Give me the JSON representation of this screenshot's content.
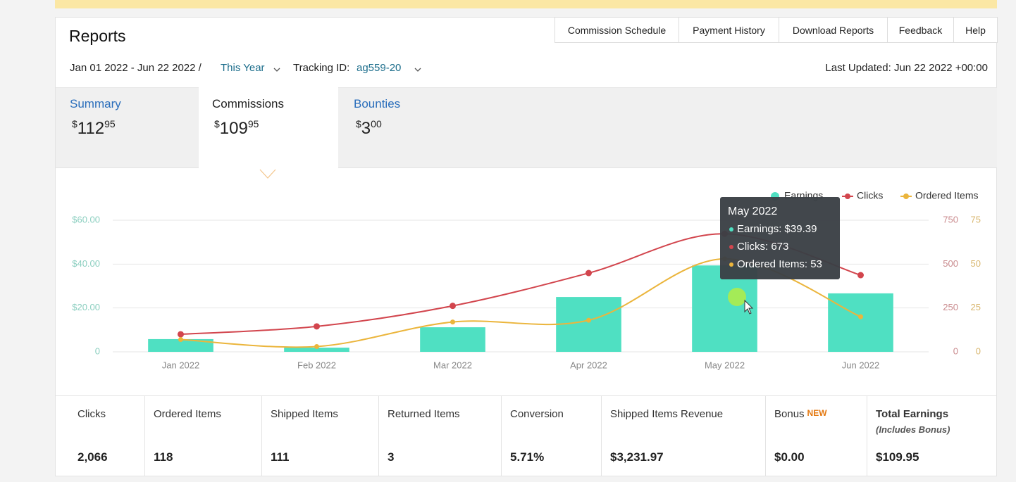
{
  "header": {
    "title": "Reports",
    "nav": [
      "Commission Schedule",
      "Payment History",
      "Download Reports",
      "Feedback",
      "Help"
    ]
  },
  "filters": {
    "date_range": "Jan 01 2022 - Jun 22 2022 /",
    "period": "This Year",
    "tracking_label": "Tracking ID:",
    "tracking_id": "ag559-20",
    "last_updated": "Last Updated: Jun 22 2022 +00:00"
  },
  "tabs": [
    {
      "label": "Summary",
      "currency": "$",
      "whole": "112",
      "cents": "95"
    },
    {
      "label": "Commissions",
      "currency": "$",
      "whole": "109",
      "cents": "95"
    },
    {
      "label": "Bounties",
      "currency": "$",
      "whole": "3",
      "cents": "00"
    }
  ],
  "chart_data": {
    "type": "combo",
    "categories": [
      "Jan 2022",
      "Feb 2022",
      "Mar 2022",
      "Apr 2022",
      "May 2022",
      "Jun 2022"
    ],
    "series": [
      {
        "name": "Earnings",
        "type": "bar",
        "axis": "y",
        "color": "#4fe0c2",
        "values": [
          5.8,
          1.9,
          11.2,
          25.0,
          39.39,
          26.66
        ]
      },
      {
        "name": "Clicks",
        "type": "line",
        "axis": "y2",
        "color": "#d2454d",
        "values": [
          100,
          145,
          262,
          449,
          673,
          437
        ]
      },
      {
        "name": "Ordered Items",
        "type": "line",
        "axis": "y3",
        "color": "#ebb53c",
        "values": [
          7,
          3,
          17,
          18,
          53,
          20
        ]
      }
    ],
    "ylim": [
      0,
      60
    ],
    "yticks": [
      0,
      {
        "value": 20,
        "label": "$20.00"
      },
      {
        "value": 40,
        "label": "$40.00"
      },
      {
        "value": 60,
        "label": "$60.00"
      }
    ],
    "y2lim": [
      0,
      750
    ],
    "y2ticks": [
      0,
      250,
      500,
      750
    ],
    "y3lim": [
      0,
      75
    ],
    "y3ticks": [
      0,
      25,
      50,
      75
    ],
    "grid": true,
    "legend": "top-right",
    "tooltip": {
      "title": "May 2022",
      "lines": [
        "Earnings: $39.39",
        "Clicks: 673",
        "Ordered Items: 53"
      ]
    }
  },
  "stats": [
    {
      "label": "Clicks",
      "value": "2,066"
    },
    {
      "label": "Ordered Items",
      "value": "118"
    },
    {
      "label": "Shipped Items",
      "value": "111"
    },
    {
      "label": "Returned Items",
      "value": "3"
    },
    {
      "label": "Conversion",
      "value": "5.71%"
    },
    {
      "label": "Shipped Items Revenue",
      "value": "$3,231.97"
    },
    {
      "label": "Bonus",
      "badge": "NEW",
      "value": "$0.00"
    },
    {
      "label": "Total Earnings",
      "note": "(Includes Bonus)",
      "value": "$109.95"
    }
  ]
}
